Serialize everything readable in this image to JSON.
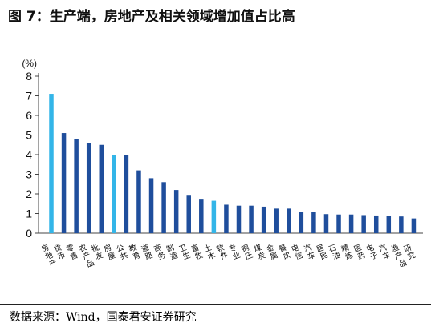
{
  "title": "图 7：生产端，房地产及相关领域增加值占比高",
  "source": "数据来源：Wind，国泰君安证券研究",
  "chart_data": {
    "type": "bar",
    "title": "图 7：生产端，房地产及相关领域增加值占比高",
    "unit": "(%)",
    "ylim": [
      0,
      8
    ],
    "yticks": [
      0,
      1,
      2,
      3,
      4,
      5,
      6,
      7,
      8
    ],
    "grid": false,
    "colors": {
      "default": "#1f4e9c",
      "highlight": "#33b5e8"
    },
    "categories": [
      "房地产",
      "货币",
      "零售",
      "农产品",
      "批发",
      "房屋",
      "公共",
      "教育",
      "道路",
      "商务",
      "制造",
      "卫生",
      "畜牧",
      "土木",
      "软件",
      "专业",
      "钢压",
      "煤炭",
      "金属",
      "餐饮",
      "电信",
      "汽车",
      "居民",
      "石油",
      "精炼",
      "医药",
      "电子",
      "汽车",
      "渔产品",
      "研究"
    ],
    "values": [
      7.1,
      5.1,
      4.8,
      4.6,
      4.5,
      4.0,
      4.0,
      3.2,
      2.8,
      2.6,
      2.2,
      1.95,
      1.75,
      1.65,
      1.45,
      1.4,
      1.4,
      1.35,
      1.25,
      1.25,
      1.1,
      1.1,
      0.97,
      0.95,
      0.95,
      0.92,
      0.9,
      0.87,
      0.85,
      0.75
    ],
    "highlight": [
      true,
      false,
      false,
      false,
      false,
      true,
      false,
      false,
      false,
      false,
      false,
      false,
      false,
      true,
      false,
      false,
      false,
      false,
      false,
      false,
      false,
      false,
      false,
      false,
      false,
      false,
      false,
      false,
      false,
      false
    ]
  }
}
